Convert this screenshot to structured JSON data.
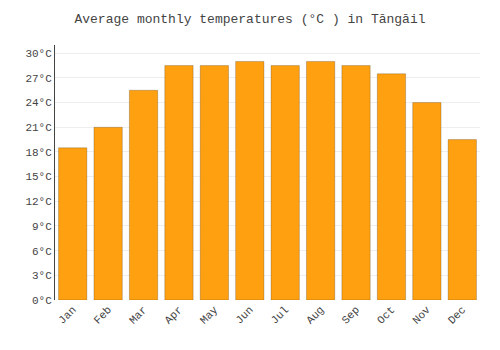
{
  "chart_data": {
    "type": "bar",
    "title": "Average monthly temperatures (°C ) in Tāngāil",
    "categories": [
      "Jan",
      "Feb",
      "Mar",
      "Apr",
      "May",
      "Jun",
      "Jul",
      "Aug",
      "Sep",
      "Oct",
      "Nov",
      "Dec"
    ],
    "values": [
      18.5,
      21.0,
      25.5,
      28.5,
      28.5,
      29.0,
      28.5,
      29.0,
      28.5,
      27.5,
      24.0,
      19.5
    ],
    "color": "#FFA010",
    "ylim": [
      0,
      31
    ],
    "yticks": [
      {
        "value": 0,
        "label": "0°C"
      },
      {
        "value": 3,
        "label": "3°C"
      },
      {
        "value": 6,
        "label": "6°C"
      },
      {
        "value": 9,
        "label": "9°C"
      },
      {
        "value": 12,
        "label": "12°C"
      },
      {
        "value": 15,
        "label": "15°C"
      },
      {
        "value": 18,
        "label": "18°C"
      },
      {
        "value": 21,
        "label": "21°C"
      },
      {
        "value": 24,
        "label": "24°C"
      },
      {
        "value": 27,
        "label": "27°C"
      },
      {
        "value": 30,
        "label": "30°C"
      }
    ],
    "grid": true
  }
}
